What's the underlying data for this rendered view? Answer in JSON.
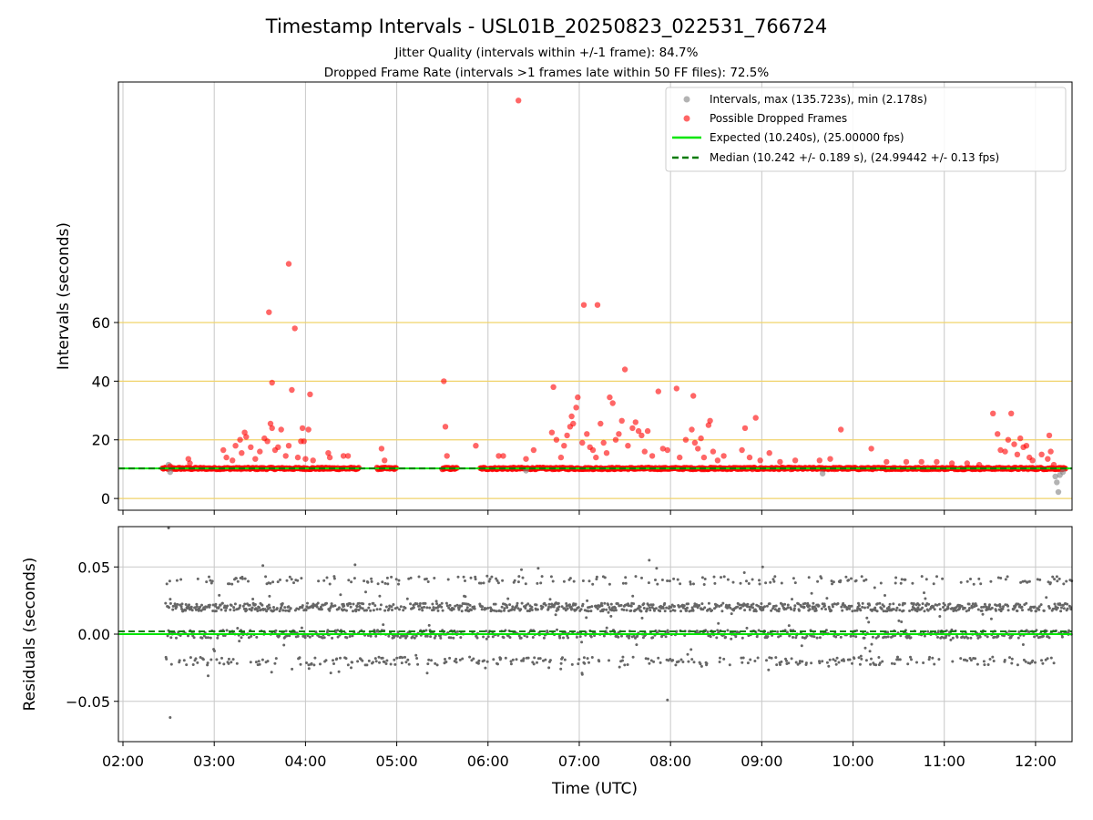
{
  "figure": {
    "title": "Timestamp Intervals - USL01B_20250823_022531_766724",
    "subtitle_1": "Jitter Quality (intervals within +/-1 frame): 84.7%",
    "subtitle_2": "Dropped Frame Rate (intervals >1 frames late within 50 FF files): 72.5%"
  },
  "colors": {
    "intervals": "#808080",
    "dropped": "#ff0000",
    "expected": "#00e600",
    "median": "#007a00",
    "hgrid_top": "#f0d36a",
    "grid": "#c8c8c8",
    "residuals": "#666666"
  },
  "chart_data": [
    {
      "type": "scatter",
      "panel": "top",
      "ylabel": "Intervals (seconds)",
      "ylim": [
        -4,
        142
      ],
      "xlim": [
        "01:57",
        "12:24"
      ],
      "yticks": [
        0,
        20,
        40,
        60
      ],
      "horizontal_grid_lines": [
        0,
        20,
        40,
        60
      ],
      "vertical_grid": true,
      "legend_position": "upper right",
      "legend": [
        "Intervals, max (135.723s), min (2.178s)",
        "Possible Dropped Frames",
        "Expected (10.240s), (25.00000 fps)",
        "Median (10.242 +/- 0.189 s), (24.99442 +/- 0.13 fps)"
      ],
      "series": [
        {
          "name": "Intervals, max (135.723s), min (2.178s)",
          "description": "dense run of intervals along the baseline",
          "baseline": 10.24,
          "visible_time_ranges": [
            [
              "02:26",
              "04:35"
            ],
            [
              "04:47",
              "05:00"
            ],
            [
              "05:30",
              "05:40"
            ],
            [
              "05:55",
              "12:20"
            ]
          ]
        },
        {
          "name": "Possible Dropped Frames",
          "points": [
            [
              "02:31",
              11.0
            ],
            [
              "02:43",
              13.5
            ],
            [
              "02:44",
              12.0
            ],
            [
              "03:06",
              16.5
            ],
            [
              "03:08",
              14.0
            ],
            [
              "03:12",
              13.0
            ],
            [
              "03:14",
              18.0
            ],
            [
              "03:17",
              20.0
            ],
            [
              "03:18",
              15.5
            ],
            [
              "03:20",
              22.5
            ],
            [
              "03:21",
              21.0
            ],
            [
              "03:24",
              17.5
            ],
            [
              "03:27",
              13.5
            ],
            [
              "03:30",
              16.0
            ],
            [
              "03:33",
              20.5
            ],
            [
              "03:35",
              19.5
            ],
            [
              "03:36",
              63.5
            ],
            [
              "03:37",
              25.5
            ],
            [
              "03:38",
              39.5
            ],
            [
              "03:38",
              24.0
            ],
            [
              "03:40",
              16.5
            ],
            [
              "03:42",
              17.5
            ],
            [
              "03:44",
              23.5
            ],
            [
              "03:47",
              14.5
            ],
            [
              "03:49",
              18.0
            ],
            [
              "03:49",
              80.0
            ],
            [
              "03:51",
              37.0
            ],
            [
              "03:53",
              58.0
            ],
            [
              "03:55",
              14.0
            ],
            [
              "03:57",
              19.5
            ],
            [
              "03:58",
              24.0
            ],
            [
              "03:59",
              19.5
            ],
            [
              "04:00",
              13.5
            ],
            [
              "04:02",
              23.5
            ],
            [
              "04:03",
              35.5
            ],
            [
              "04:05",
              13.0
            ],
            [
              "04:15",
              15.5
            ],
            [
              "04:16",
              14.0
            ],
            [
              "04:25",
              14.5
            ],
            [
              "04:28",
              14.5
            ],
            [
              "04:50",
              17.0
            ],
            [
              "04:52",
              13.0
            ],
            [
              "05:31",
              40.0
            ],
            [
              "05:32",
              24.5
            ],
            [
              "05:33",
              14.5
            ],
            [
              "05:52",
              18.0
            ],
            [
              "06:07",
              14.5
            ],
            [
              "06:10",
              14.5
            ],
            [
              "06:20",
              135.7
            ],
            [
              "06:25",
              13.5
            ],
            [
              "06:30",
              16.5
            ],
            [
              "06:42",
              22.5
            ],
            [
              "06:43",
              38.0
            ],
            [
              "06:45",
              20.0
            ],
            [
              "06:48",
              14.0
            ],
            [
              "06:50",
              18.0
            ],
            [
              "06:52",
              21.5
            ],
            [
              "06:54",
              24.5
            ],
            [
              "06:55",
              28.0
            ],
            [
              "06:56",
              25.5
            ],
            [
              "06:58",
              31.0
            ],
            [
              "06:59",
              34.5
            ],
            [
              "07:02",
              19.0
            ],
            [
              "07:03",
              66.0
            ],
            [
              "07:05",
              22.0
            ],
            [
              "07:07",
              17.5
            ],
            [
              "07:09",
              16.5
            ],
            [
              "07:11",
              14.0
            ],
            [
              "07:12",
              66.0
            ],
            [
              "07:14",
              25.5
            ],
            [
              "07:16",
              19.0
            ],
            [
              "07:18",
              15.5
            ],
            [
              "07:20",
              34.5
            ],
            [
              "07:22",
              32.5
            ],
            [
              "07:24",
              20.0
            ],
            [
              "07:26",
              22.0
            ],
            [
              "07:28",
              26.5
            ],
            [
              "07:30",
              44.0
            ],
            [
              "07:32",
              18.0
            ],
            [
              "07:35",
              24.0
            ],
            [
              "07:37",
              26.0
            ],
            [
              "07:39",
              23.0
            ],
            [
              "07:41",
              21.5
            ],
            [
              "07:43",
              16.0
            ],
            [
              "07:45",
              23.0
            ],
            [
              "07:48",
              14.5
            ],
            [
              "07:52",
              36.5
            ],
            [
              "07:55",
              17.0
            ],
            [
              "07:58",
              16.5
            ],
            [
              "08:04",
              37.5
            ],
            [
              "08:06",
              14.0
            ],
            [
              "08:10",
              20.0
            ],
            [
              "08:14",
              23.5
            ],
            [
              "08:15",
              35.0
            ],
            [
              "08:16",
              19.0
            ],
            [
              "08:18",
              17.0
            ],
            [
              "08:20",
              20.5
            ],
            [
              "08:22",
              14.0
            ],
            [
              "08:25",
              25.0
            ],
            [
              "08:26",
              26.5
            ],
            [
              "08:28",
              16.0
            ],
            [
              "08:31",
              13.0
            ],
            [
              "08:35",
              14.5
            ],
            [
              "08:47",
              16.5
            ],
            [
              "08:49",
              24.0
            ],
            [
              "08:52",
              14.0
            ],
            [
              "08:56",
              27.5
            ],
            [
              "08:59",
              13.0
            ],
            [
              "09:05",
              15.5
            ],
            [
              "09:12",
              12.5
            ],
            [
              "09:22",
              13.0
            ],
            [
              "09:38",
              13.0
            ],
            [
              "09:45",
              13.5
            ],
            [
              "09:52",
              23.5
            ],
            [
              "10:12",
              17.0
            ],
            [
              "10:22",
              12.5
            ],
            [
              "10:35",
              12.5
            ],
            [
              "10:45",
              12.5
            ],
            [
              "10:55",
              12.5
            ],
            [
              "11:05",
              12.0
            ],
            [
              "11:15",
              12.0
            ],
            [
              "11:23",
              11.5
            ],
            [
              "11:32",
              29.0
            ],
            [
              "11:35",
              22.0
            ],
            [
              "11:37",
              16.5
            ],
            [
              "11:40",
              16.0
            ],
            [
              "11:42",
              20.0
            ],
            [
              "11:44",
              29.0
            ],
            [
              "11:46",
              18.5
            ],
            [
              "11:48",
              15.0
            ],
            [
              "11:50",
              20.5
            ],
            [
              "11:52",
              17.5
            ],
            [
              "11:54",
              18.0
            ],
            [
              "11:56",
              14.0
            ],
            [
              "11:58",
              13.0
            ],
            [
              "12:04",
              15.0
            ],
            [
              "12:08",
              13.5
            ],
            [
              "12:09",
              21.5
            ],
            [
              "12:10",
              16.0
            ],
            [
              "12:12",
              11.5
            ]
          ]
        },
        {
          "name": "Expected (10.240s), (25.00000 fps)",
          "y": 10.24
        },
        {
          "name": "Median (10.242 +/- 0.189 s), (24.99442 +/- 0.13 fps)",
          "y": 10.242
        }
      ]
    },
    {
      "type": "scatter",
      "panel": "bottom",
      "xlabel": "Time (UTC)",
      "ylabel": "Residuals (seconds)",
      "ylim": [
        -0.08,
        0.08
      ],
      "yticks": [
        -0.05,
        0.0,
        0.05
      ],
      "ytick_labels": [
        "−0.05",
        "0.00",
        "0.05"
      ],
      "xlim": [
        "01:57",
        "12:24"
      ],
      "xticks": [
        "02:00",
        "03:00",
        "04:00",
        "05:00",
        "06:00",
        "07:00",
        "08:00",
        "09:00",
        "10:00",
        "11:00",
        "12:00"
      ],
      "grid": true,
      "residual_bands": [
        0.02,
        0.0,
        0.04,
        -0.02
      ],
      "outliers": [
        [
          "02:30",
          0.079
        ],
        [
          "02:31",
          -0.062
        ],
        [
          "03:32",
          0.051
        ],
        [
          "04:30",
          -0.025
        ],
        [
          "06:22",
          0.048
        ],
        [
          "07:46",
          0.055
        ],
        [
          "07:58",
          -0.049
        ],
        [
          "02:56",
          -0.031
        ],
        [
          "05:20",
          -0.029
        ],
        [
          "07:02",
          -0.03
        ],
        [
          "06:40",
          -0.025
        ]
      ],
      "series": [
        {
          "name": "Expected",
          "y": 0.0
        },
        {
          "name": "Median",
          "y": 0.002
        }
      ]
    }
  ]
}
